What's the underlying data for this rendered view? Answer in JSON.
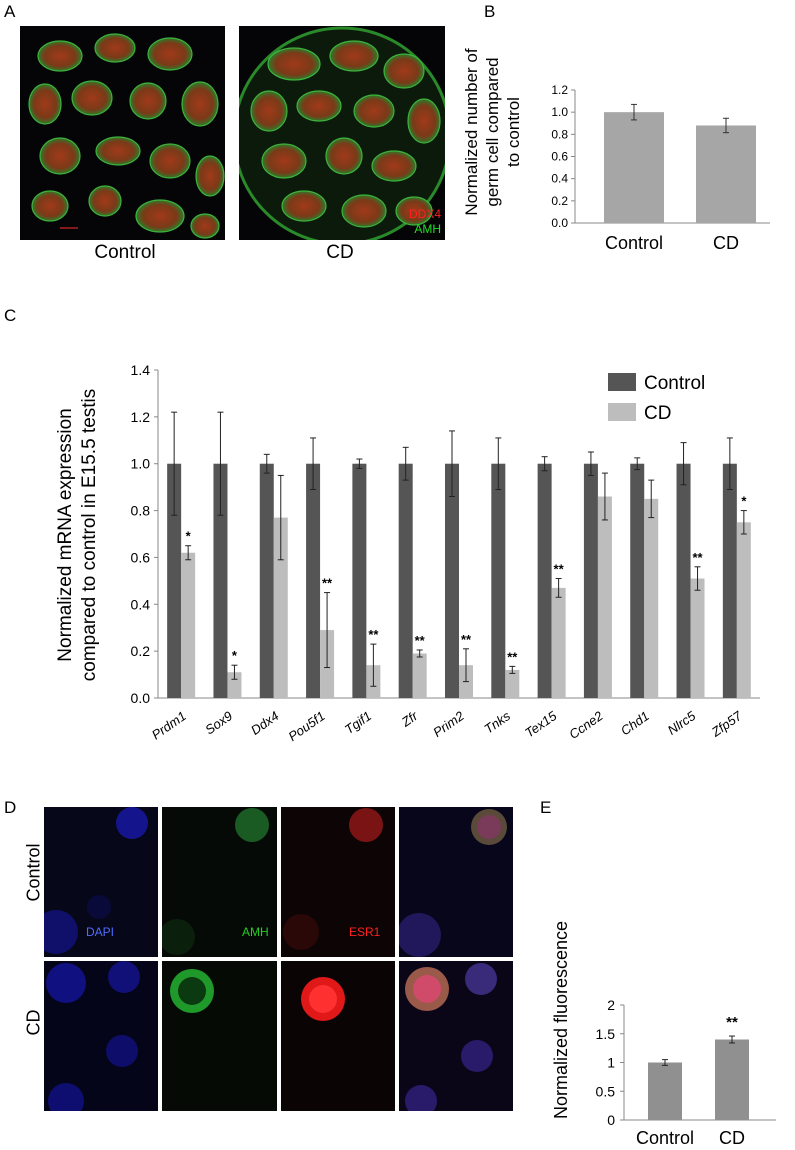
{
  "panels": {
    "A": {
      "letter": "A",
      "captions": [
        "Control",
        "CD"
      ],
      "stain_labels": [
        "DDX4",
        "AMH"
      ],
      "stain_colors": [
        "#ff2020",
        "#20e020"
      ]
    },
    "B": {
      "letter": "B"
    },
    "C": {
      "letter": "C"
    },
    "D": {
      "letter": "D",
      "row_labels": [
        "Control",
        "CD"
      ],
      "channel_labels": [
        "DAPI",
        "AMH",
        "ESR1"
      ],
      "channel_colors": [
        "#4d6dff",
        "#20d020",
        "#ff2020"
      ]
    },
    "E": {
      "letter": "E"
    }
  },
  "colors": {
    "gray_bar": "#a6a6a6",
    "dark_bar": "#555555",
    "light_bar": "#bdbdbd"
  },
  "chart_data": [
    {
      "id": "B",
      "type": "bar",
      "categories": [
        "Control",
        "CD"
      ],
      "values": [
        1.0,
        0.88
      ],
      "errors": [
        0.07,
        0.065
      ],
      "ylabel": "Normalized number of germ cell compared to control",
      "ylim": [
        0,
        1.2
      ],
      "yticks": [
        "0.0",
        "0.2",
        "0.4",
        "0.6",
        "0.8",
        "1.0",
        "1.2"
      ]
    },
    {
      "id": "C",
      "type": "bar",
      "categories": [
        "Prdm1",
        "Sox9",
        "Ddx4",
        "Pou5f1",
        "Tgif1",
        "Zfr",
        "Prim2",
        "Tnks",
        "Tex15",
        "Ccne2",
        "Chd1",
        "Nlrc5",
        "Zfp57"
      ],
      "series": [
        {
          "name": "Control",
          "values": [
            1,
            1,
            1,
            1,
            1,
            1,
            1,
            1,
            1,
            1,
            1,
            1,
            1
          ],
          "errors": [
            0.22,
            0.22,
            0.04,
            0.11,
            0.02,
            0.07,
            0.14,
            0.11,
            0.03,
            0.05,
            0.025,
            0.09,
            0.11
          ]
        },
        {
          "name": "CD",
          "values": [
            0.62,
            0.11,
            0.77,
            0.29,
            0.14,
            0.19,
            0.14,
            0.12,
            0.47,
            0.86,
            0.85,
            0.51,
            0.75
          ],
          "errors": [
            0.03,
            0.03,
            0.18,
            0.16,
            0.09,
            0.015,
            0.07,
            0.015,
            0.04,
            0.1,
            0.08,
            0.05,
            0.05
          ]
        }
      ],
      "significance": [
        "*",
        "*",
        "",
        "**",
        "**",
        "**",
        "**",
        "**",
        "**",
        "",
        "",
        "**",
        "*"
      ],
      "ylabel": "Normalized mRNA expression compared to control in E15.5 testis",
      "ylim": [
        0,
        1.4
      ],
      "yticks": [
        "0.0",
        "0.2",
        "0.4",
        "0.6",
        "0.8",
        "1.0",
        "1.2",
        "1.4"
      ],
      "legend_position": "top-right"
    },
    {
      "id": "E",
      "type": "bar",
      "categories": [
        "Control",
        "CD"
      ],
      "values": [
        1.0,
        1.4
      ],
      "errors": [
        0.05,
        0.06
      ],
      "significance": [
        "",
        "**"
      ],
      "ylabel": "Normalized fluorescence",
      "ylim": [
        0,
        2
      ],
      "yticks": [
        "0",
        "0.5",
        "1",
        "1.5",
        "2"
      ]
    }
  ]
}
